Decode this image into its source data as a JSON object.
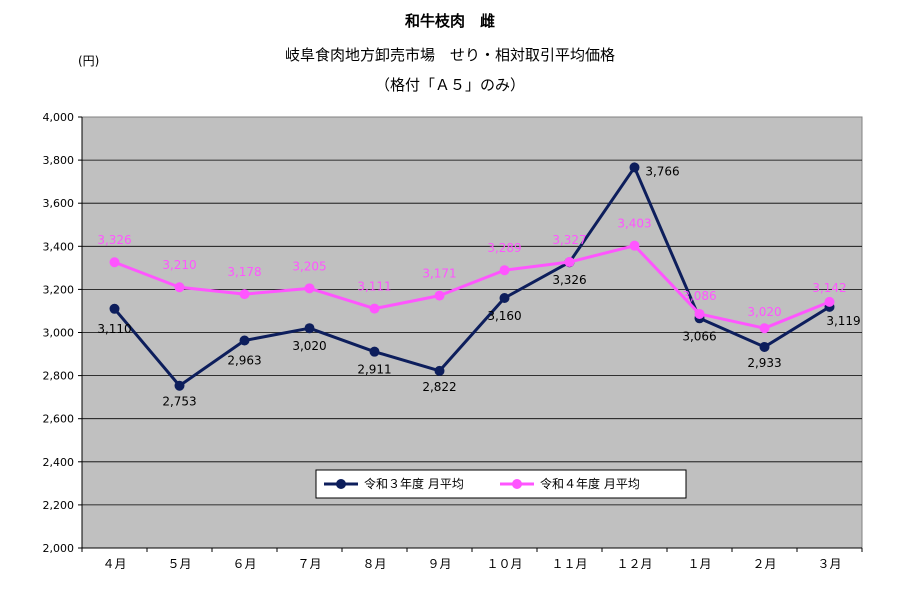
{
  "title": "和牛枝肉　雌",
  "subtitle": "岐阜食肉地方卸売市場　せり・相対取引平均価格",
  "subtitle2": "（格付「Ａ５」のみ）",
  "ylabel": "(円)",
  "colors": {
    "series1": "#0D1E5C",
    "series2": "#FF55FF",
    "plot_bg": "#C0C0C0"
  },
  "chart_data": {
    "type": "line",
    "categories": [
      "４月",
      "５月",
      "６月",
      "７月",
      "８月",
      "９月",
      "１０月",
      "１１月",
      "１２月",
      "１月",
      "２月",
      "３月"
    ],
    "ylim": [
      2000,
      4000
    ],
    "yticks": [
      2000,
      2200,
      2400,
      2600,
      2800,
      3000,
      3200,
      3400,
      3600,
      3800,
      4000
    ],
    "ytick_labels": [
      "2,000",
      "2,200",
      "2,400",
      "2,600",
      "2,800",
      "3,000",
      "3,200",
      "3,400",
      "3,600",
      "3,800",
      "4,000"
    ],
    "grid": true,
    "legend_position": "bottom-center inside plot",
    "series": [
      {
        "name": "令和３年度 月平均",
        "values": [
          3110,
          2753,
          2963,
          3020,
          2911,
          2822,
          3160,
          3326,
          3766,
          3066,
          2933,
          3119
        ],
        "labels": [
          "3,110",
          "2,753",
          "2,963",
          "3,020",
          "2,911",
          "2,822",
          "3,160",
          "3,326",
          "3,766",
          "3,066",
          "2,933",
          "3,119"
        ]
      },
      {
        "name": "令和４年度 月平均",
        "values": [
          3326,
          3210,
          3178,
          3205,
          3111,
          3171,
          3289,
          3327,
          3403,
          3086,
          3020,
          3142
        ],
        "labels": [
          "3,326",
          "3,210",
          "3,178",
          "3,205",
          "3,111",
          "3,171",
          "3,289",
          "3,327",
          "3,403",
          "3,086",
          "3,020",
          "3,142"
        ]
      }
    ]
  }
}
